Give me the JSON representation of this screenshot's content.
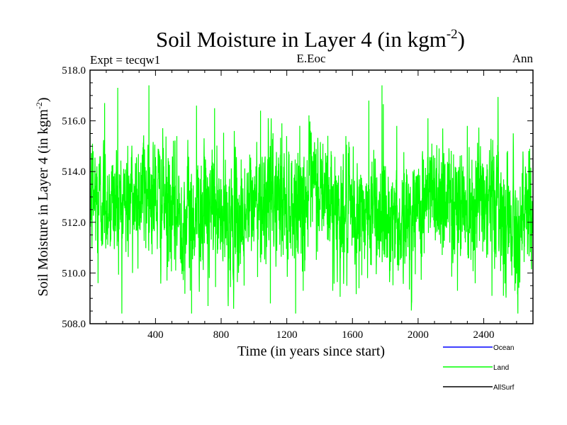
{
  "chart_data": {
    "type": "line",
    "title": "Soil Moisture in Layer 4 (in kgm",
    "title_sup": "-2",
    "title_close": ")",
    "subtitle_left": "Expt = tecqw1",
    "subtitle_center": "E.Eoc",
    "subtitle_right": "Ann",
    "xlabel": "Time (in years since start)",
    "ylabel": "Soil Moisture in Layer 4 (in kgm",
    "ylabel_sup": "-2",
    "ylabel_close": ")",
    "xlim": [
      1,
      2700
    ],
    "ylim": [
      508.0,
      518.0
    ],
    "xticks": [
      400,
      800,
      1200,
      1600,
      2000,
      2400
    ],
    "xtick_labels": [
      "400",
      "800",
      "1200",
      "1600",
      "2000",
      "2400"
    ],
    "yticks": [
      508,
      510,
      512,
      514,
      516,
      518
    ],
    "ytick_labels": [
      "508.0",
      "510.0",
      "512.0",
      "514.0",
      "516.0",
      "518.0"
    ],
    "legend_position": "bottom-right",
    "series": [
      {
        "name": "Ocean",
        "color": "#0000ff",
        "values": []
      },
      {
        "name": "Land",
        "color": "#00ff00",
        "n_points": 2700,
        "mean": 512.6,
        "std": 1.15,
        "notable_points": [
          {
            "x": 20,
            "y": 514.8
          },
          {
            "x": 50,
            "y": 509.6
          },
          {
            "x": 90,
            "y": 516.7
          },
          {
            "x": 170,
            "y": 517.3
          },
          {
            "x": 260,
            "y": 510.0
          },
          {
            "x": 360,
            "y": 517.4
          },
          {
            "x": 470,
            "y": 509.7
          },
          {
            "x": 530,
            "y": 515.4
          },
          {
            "x": 620,
            "y": 508.4
          },
          {
            "x": 650,
            "y": 516.6
          },
          {
            "x": 720,
            "y": 508.7
          },
          {
            "x": 760,
            "y": 516.5
          },
          {
            "x": 880,
            "y": 515.6
          },
          {
            "x": 940,
            "y": 509.5
          },
          {
            "x": 1040,
            "y": 516.4
          },
          {
            "x": 1100,
            "y": 508.8
          },
          {
            "x": 1170,
            "y": 515.9
          },
          {
            "x": 1300,
            "y": 509.3
          },
          {
            "x": 1420,
            "y": 515.1
          },
          {
            "x": 1480,
            "y": 509.3
          },
          {
            "x": 1560,
            "y": 515.4
          },
          {
            "x": 1640,
            "y": 509.4
          },
          {
            "x": 1700,
            "y": 516.8
          },
          {
            "x": 1780,
            "y": 517.4
          },
          {
            "x": 1870,
            "y": 515.8
          },
          {
            "x": 1960,
            "y": 508.8
          },
          {
            "x": 2060,
            "y": 516.1
          },
          {
            "x": 2150,
            "y": 515.7
          },
          {
            "x": 2240,
            "y": 509.3
          },
          {
            "x": 2300,
            "y": 515.8
          },
          {
            "x": 2380,
            "y": 515.0
          },
          {
            "x": 2450,
            "y": 509.1
          },
          {
            "x": 2520,
            "y": 509.1
          },
          {
            "x": 2590,
            "y": 509.3
          },
          {
            "x": 2680,
            "y": 514.9
          }
        ]
      },
      {
        "name": "AllSurf",
        "color": "#000000",
        "values": []
      }
    ]
  }
}
